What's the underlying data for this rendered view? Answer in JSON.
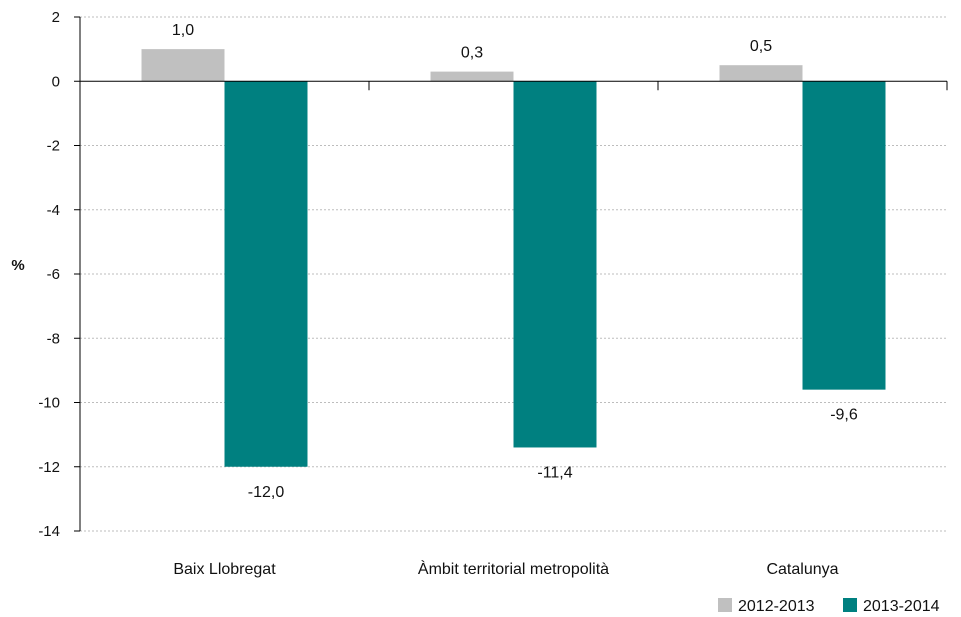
{
  "chart_data": {
    "type": "bar",
    "title": "",
    "xlabel": "",
    "ylabel": "%",
    "ylim": [
      -14,
      2
    ],
    "yticks": [
      2,
      0,
      -2,
      -4,
      -6,
      -8,
      -10,
      -12,
      -14
    ],
    "ytick_labels": [
      "2",
      "0",
      "-2",
      "-4",
      "-6",
      "-8",
      "-10",
      "-12",
      "-14"
    ],
    "grid": true,
    "legend_position": "bottom-right",
    "categories": [
      "Baix Llobregat",
      "Àmbit territorial metropolità",
      "Catalunya"
    ],
    "series": [
      {
        "name": "2012-2013",
        "color": "#c0c0c0",
        "values": [
          1.0,
          0.3,
          0.5
        ],
        "labels": [
          "1,0",
          "0,3",
          "0,5"
        ]
      },
      {
        "name": "2013-2014",
        "color": "#008080",
        "values": [
          -12.0,
          -11.4,
          -9.6
        ],
        "labels": [
          "-12,0",
          "-11,4",
          "-9,6"
        ]
      }
    ]
  }
}
